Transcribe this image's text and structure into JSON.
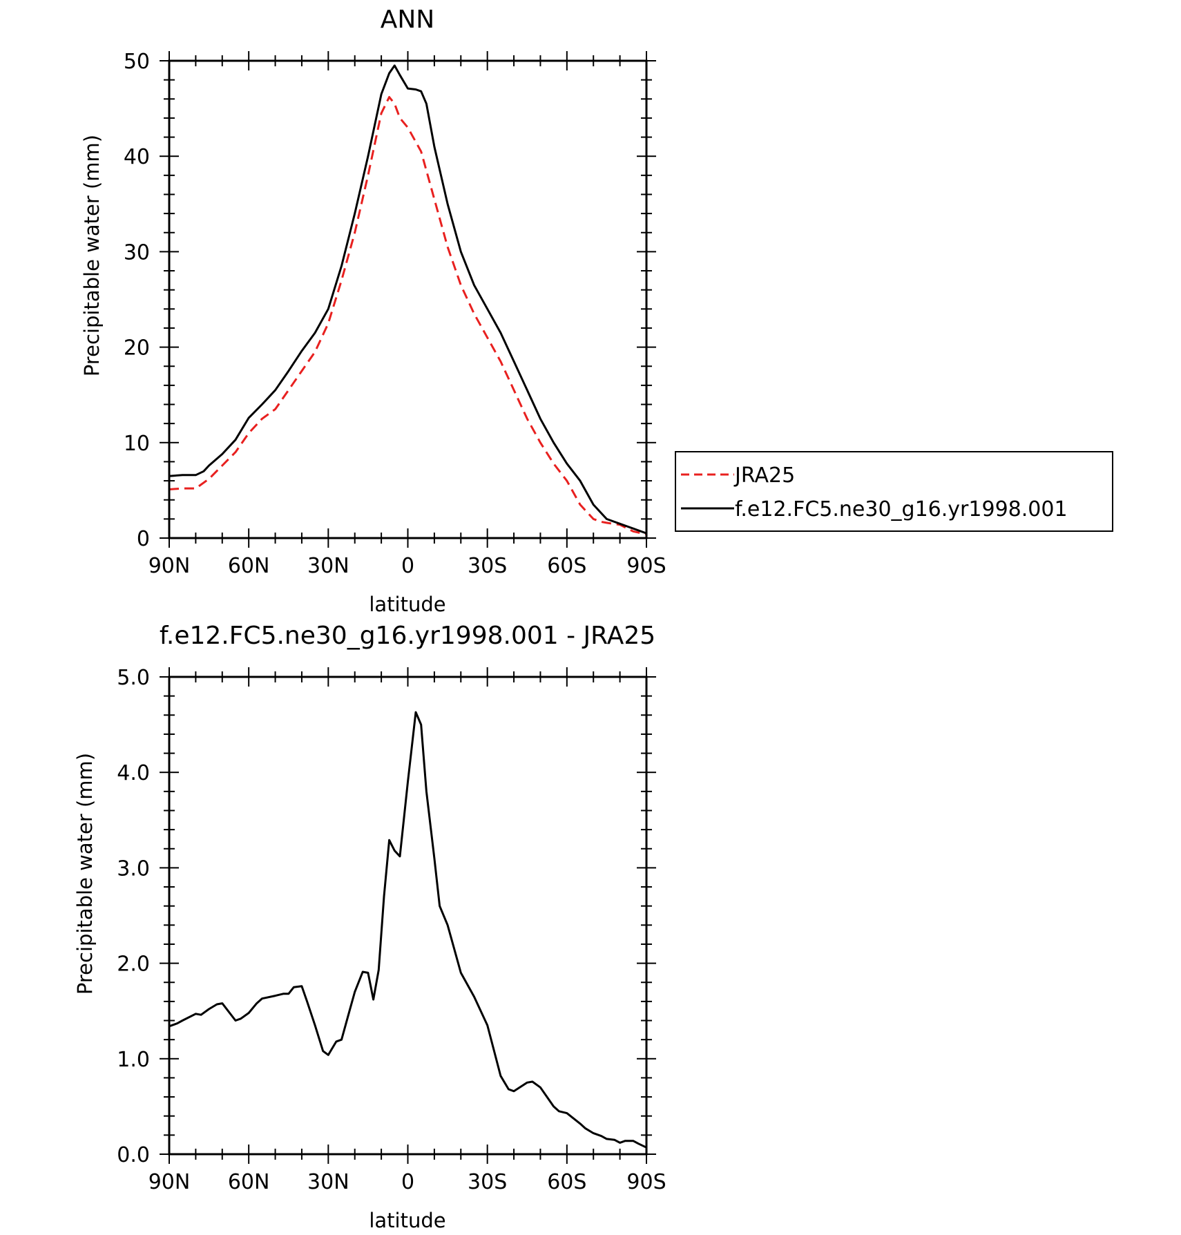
{
  "chart_data": [
    {
      "type": "line",
      "title": "ANN",
      "xlabel": "latitude",
      "ylabel": "Precipitable water (mm)",
      "xlim": [
        90,
        -90
      ],
      "ylim": [
        0,
        50
      ],
      "x_ticks": [
        90,
        60,
        30,
        0,
        -30,
        -60,
        -90
      ],
      "x_tick_labels": [
        "90N",
        "60N",
        "30N",
        "0",
        "30S",
        "60S",
        "90S"
      ],
      "y_ticks": [
        0,
        10,
        20,
        30,
        40,
        50
      ],
      "y_tick_labels": [
        "0",
        "10",
        "20",
        "30",
        "40",
        "50"
      ],
      "legend": {
        "placement": "right",
        "entries": [
          "JRA25",
          "f.e12.FC5.ne30_g16.yr1998.001"
        ]
      },
      "series": [
        {
          "name": "JRA25",
          "color": "#e8201f",
          "dash": "dashed",
          "x": [
            90,
            85,
            80,
            75,
            70,
            65,
            60,
            55,
            50,
            45,
            40,
            35,
            30,
            25,
            20,
            15,
            10,
            7,
            5,
            3,
            0,
            -5,
            -10,
            -15,
            -20,
            -25,
            -30,
            -35,
            -40,
            -45,
            -50,
            -55,
            -60,
            -65,
            -70,
            -73,
            -75,
            -80,
            -85,
            -90
          ],
          "values": [
            5.1,
            5.2,
            5.2,
            6.2,
            7.6,
            9.0,
            11.0,
            12.5,
            13.5,
            15.5,
            17.5,
            19.5,
            22.5,
            27.0,
            32.0,
            38.0,
            44.5,
            46.2,
            45.5,
            44.0,
            43.0,
            40.5,
            35.5,
            30.5,
            26.5,
            23.5,
            21.0,
            18.5,
            15.5,
            12.5,
            10.0,
            7.8,
            6.0,
            3.5,
            2.0,
            1.7,
            1.6,
            1.4,
            0.7,
            0.4
          ]
        },
        {
          "name": "f.e12.FC5.ne30_g16.yr1998.001",
          "color": "#000000",
          "dash": "solid",
          "x": [
            90,
            85,
            80,
            77,
            75,
            70,
            65,
            60,
            55,
            50,
            45,
            40,
            35,
            30,
            25,
            20,
            15,
            10,
            7,
            5,
            3,
            0,
            -3,
            -5,
            -7,
            -10,
            -15,
            -20,
            -25,
            -30,
            -35,
            -40,
            -45,
            -50,
            -55,
            -60,
            -65,
            -70,
            -75,
            -80,
            -85,
            -90
          ],
          "values": [
            6.5,
            6.6,
            6.6,
            7.0,
            7.6,
            8.8,
            10.3,
            12.6,
            14.0,
            15.5,
            17.5,
            19.6,
            21.5,
            24.0,
            28.5,
            34.0,
            40.0,
            46.5,
            48.7,
            49.5,
            48.5,
            47.1,
            47.0,
            46.8,
            45.5,
            41.0,
            35.0,
            30.0,
            26.5,
            24.0,
            21.5,
            18.5,
            15.5,
            12.5,
            10.0,
            7.8,
            6.0,
            3.5,
            2.0,
            1.5,
            1.0,
            0.5
          ]
        }
      ]
    },
    {
      "type": "line",
      "title": "f.e12.FC5.ne30_g16.yr1998.001 - JRA25",
      "xlabel": "latitude",
      "ylabel": "Precipitable water (mm)",
      "xlim": [
        90,
        -90
      ],
      "ylim": [
        0,
        5
      ],
      "x_ticks": [
        90,
        60,
        30,
        0,
        -30,
        -60,
        -90
      ],
      "x_tick_labels": [
        "90N",
        "60N",
        "30N",
        "0",
        "30S",
        "60S",
        "90S"
      ],
      "y_ticks": [
        0,
        1,
        2,
        3,
        4,
        5
      ],
      "y_tick_labels": [
        "0.0",
        "1.0",
        "2.0",
        "3.0",
        "4.0",
        "5.0"
      ],
      "series": [
        {
          "color": "#000000",
          "dash": "solid",
          "x": [
            90,
            87,
            85,
            80,
            78,
            75,
            72,
            70,
            65,
            63,
            60,
            57,
            55,
            50,
            47,
            45,
            43,
            40,
            38,
            35,
            32,
            30,
            27,
            25,
            22,
            20,
            17,
            15,
            13,
            11,
            9,
            7,
            5,
            3,
            0,
            -3,
            -5,
            -7,
            -10,
            -12,
            -15,
            -20,
            -25,
            -30,
            -35,
            -38,
            -40,
            -45,
            -47,
            -50,
            -55,
            -57,
            -60,
            -65,
            -67,
            -70,
            -73,
            -75,
            -78,
            -80,
            -82,
            -85,
            -87,
            -90
          ],
          "values": [
            1.34,
            1.37,
            1.4,
            1.47,
            1.46,
            1.52,
            1.57,
            1.58,
            1.4,
            1.42,
            1.48,
            1.58,
            1.63,
            1.66,
            1.68,
            1.68,
            1.75,
            1.76,
            1.6,
            1.35,
            1.08,
            1.04,
            1.18,
            1.2,
            1.5,
            1.7,
            1.91,
            1.9,
            1.62,
            1.93,
            2.7,
            3.29,
            3.18,
            3.12,
            3.9,
            4.63,
            4.5,
            3.8,
            3.1,
            2.6,
            2.4,
            1.9,
            1.65,
            1.35,
            0.82,
            0.68,
            0.66,
            0.75,
            0.76,
            0.7,
            0.5,
            0.45,
            0.43,
            0.32,
            0.27,
            0.22,
            0.19,
            0.16,
            0.15,
            0.12,
            0.14,
            0.14,
            0.11,
            0.07
          ]
        }
      ]
    }
  ]
}
